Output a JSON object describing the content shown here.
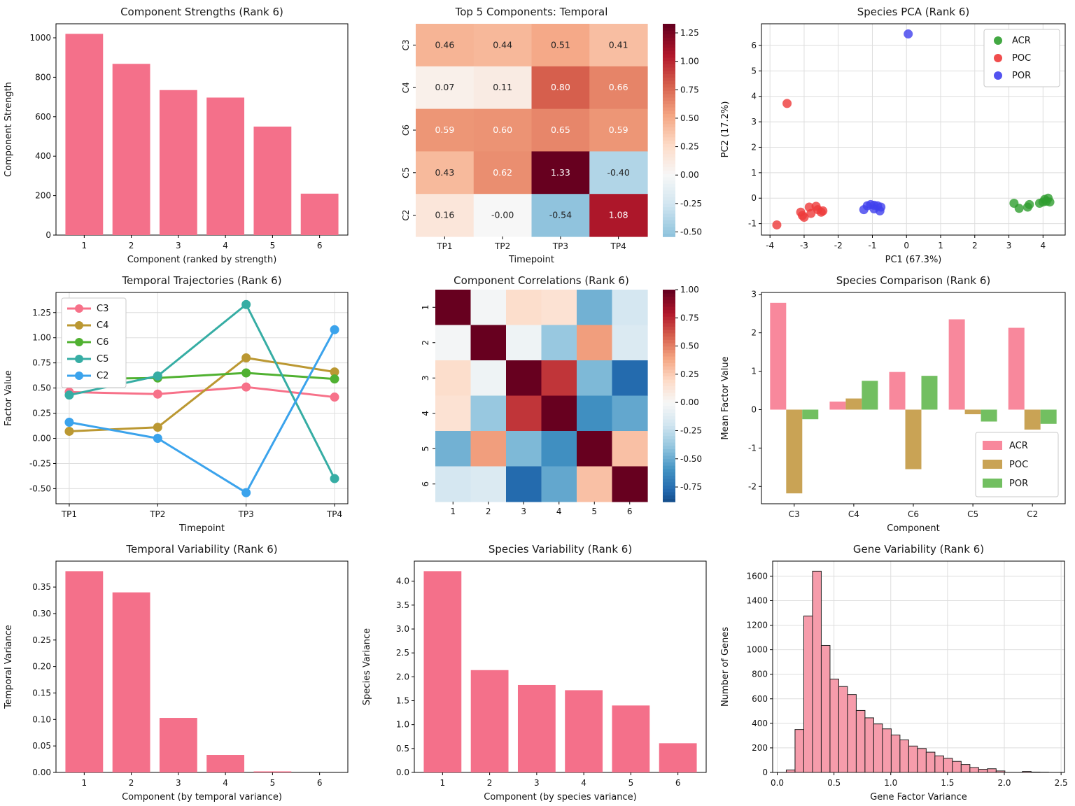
{
  "figure": {
    "background": "#ffffff",
    "text_color": "#141414",
    "grid_color": "#dedede"
  },
  "chart_data": [
    {
      "key": "component_strengths",
      "type": "bar",
      "title": "Component Strengths (Rank 6)",
      "xlabel": "Component (ranked by strength)",
      "ylabel": "Component Strength",
      "categories": [
        "1",
        "2",
        "3",
        "4",
        "5",
        "6"
      ],
      "values": [
        1020,
        868,
        735,
        697,
        550,
        210
      ],
      "bar_color": "#f4708a",
      "ylim": [
        0,
        1071
      ],
      "yticks": {
        "values": [
          0,
          200,
          400,
          600,
          800,
          1000
        ],
        "labels": [
          "0",
          "200",
          "400",
          "600",
          "800",
          "1000"
        ]
      }
    },
    {
      "key": "top5_temporal",
      "type": "heatmap",
      "title": "Top 5 Components: Temporal",
      "xlabel": "Timepoint",
      "ylabel": "",
      "rows": [
        "C3",
        "C4",
        "C6",
        "C5",
        "C2"
      ],
      "cols": [
        "TP1",
        "TP2",
        "TP3",
        "TP4"
      ],
      "values": [
        [
          0.46,
          0.44,
          0.51,
          0.41
        ],
        [
          0.07,
          0.11,
          0.8,
          0.66
        ],
        [
          0.59,
          0.6,
          0.65,
          0.59
        ],
        [
          0.43,
          0.62,
          1.33,
          -0.4
        ],
        [
          0.16,
          -0.0,
          -0.54,
          1.08
        ]
      ],
      "cell_labels": [
        [
          "0.46",
          "0.44",
          "0.51",
          "0.41"
        ],
        [
          "0.07",
          "0.11",
          "0.80",
          "0.66"
        ],
        [
          "0.59",
          "0.60",
          "0.65",
          "0.59"
        ],
        [
          "0.43",
          "0.62",
          "1.33",
          "-0.40"
        ],
        [
          "0.16",
          "-0.00",
          "-0.54",
          "1.08"
        ]
      ],
      "annot": true,
      "colormap": "RdBu_r",
      "center": 0,
      "halfrange": 1.33,
      "vmin": -0.54,
      "vmax": 1.33,
      "colorbar_ticks": {
        "values": [
          1.25,
          1.0,
          0.75,
          0.5,
          0.25,
          0.0,
          -0.25,
          -0.5
        ],
        "labels": [
          "1.25",
          "1.00",
          "0.75",
          "0.50",
          "0.25",
          "0.00",
          "-0.25",
          "-0.50"
        ]
      }
    },
    {
      "key": "species_pca",
      "type": "scatter",
      "title": "Species PCA (Rank 6)",
      "xlabel": "PC1 (67.3%)",
      "ylabel": "PC2 (17.2%)",
      "xlim": [
        -4.25,
        4.65
      ],
      "ylim": [
        -1.45,
        6.85
      ],
      "xticks": {
        "values": [
          -4,
          -3,
          -2,
          -1,
          0,
          1,
          2,
          3,
          4
        ],
        "labels": [
          "-4",
          "-3",
          "-2",
          "-1",
          "0",
          "1",
          "2",
          "3",
          "4"
        ]
      },
      "yticks": {
        "values": [
          -1,
          0,
          1,
          2,
          3,
          4,
          5,
          6
        ],
        "labels": [
          "-1",
          "0",
          "1",
          "2",
          "3",
          "4",
          "5",
          "6"
        ]
      },
      "grid": true,
      "legend_position": "upper-right",
      "series": [
        {
          "name": "ACR",
          "color": "#2f9e2f",
          "points": [
            [
              3.15,
              -0.2
            ],
            [
              3.3,
              -0.4
            ],
            [
              3.55,
              -0.35
            ],
            [
              3.6,
              -0.25
            ],
            [
              3.9,
              -0.2
            ],
            [
              4.0,
              -0.15
            ],
            [
              4.05,
              -0.05
            ],
            [
              4.1,
              -0.12
            ],
            [
              4.15,
              0.0
            ],
            [
              4.2,
              -0.15
            ]
          ]
        },
        {
          "name": "POC",
          "color": "#ee3a3a",
          "points": [
            [
              -3.5,
              3.72
            ],
            [
              -3.8,
              -1.05
            ],
            [
              -3.1,
              -0.55
            ],
            [
              -3.05,
              -0.68
            ],
            [
              -3.0,
              -0.75
            ],
            [
              -2.85,
              -0.35
            ],
            [
              -2.8,
              -0.6
            ],
            [
              -2.65,
              -0.32
            ],
            [
              -2.6,
              -0.45
            ],
            [
              -2.5,
              -0.55
            ],
            [
              -2.45,
              -0.5
            ]
          ]
        },
        {
          "name": "POR",
          "color": "#4040ee",
          "points": [
            [
              0.05,
              6.45
            ],
            [
              -1.25,
              -0.45
            ],
            [
              -1.15,
              -0.3
            ],
            [
              -1.05,
              -0.25
            ],
            [
              -0.95,
              -0.28
            ],
            [
              -0.95,
              -0.42
            ],
            [
              -0.85,
              -0.3
            ],
            [
              -0.78,
              -0.5
            ],
            [
              -0.75,
              -0.35
            ]
          ]
        }
      ]
    },
    {
      "key": "temporal_trajectories",
      "type": "line",
      "title": "Temporal Trajectories (Rank 6)",
      "xlabel": "Timepoint",
      "ylabel": "Factor Value",
      "categories": [
        "TP1",
        "TP2",
        "TP3",
        "TP4"
      ],
      "ylim": [
        -0.65,
        1.45
      ],
      "yticks": {
        "values": [
          -0.5,
          -0.25,
          0.0,
          0.25,
          0.5,
          0.75,
          1.0,
          1.25
        ],
        "labels": [
          "-0.50",
          "-0.25",
          "0.00",
          "0.25",
          "0.50",
          "0.75",
          "1.00",
          "1.25"
        ]
      },
      "grid": true,
      "legend_position": "upper-left",
      "series": [
        {
          "name": "C3",
          "color": "#f77189",
          "values": [
            0.46,
            0.44,
            0.51,
            0.41
          ]
        },
        {
          "name": "C4",
          "color": "#bb9832",
          "values": [
            0.07,
            0.11,
            0.8,
            0.66
          ]
        },
        {
          "name": "C6",
          "color": "#50b131",
          "values": [
            0.59,
            0.6,
            0.65,
            0.59
          ]
        },
        {
          "name": "C5",
          "color": "#36ada4",
          "values": [
            0.43,
            0.62,
            1.33,
            -0.4
          ]
        },
        {
          "name": "C2",
          "color": "#3ba3ec",
          "values": [
            0.16,
            0.0,
            -0.54,
            1.08
          ]
        }
      ]
    },
    {
      "key": "component_correlations",
      "type": "heatmap",
      "title": "Component Correlations (Rank 6)",
      "xlabel": "",
      "ylabel": "",
      "rows": [
        "1",
        "2",
        "3",
        "4",
        "5",
        "6"
      ],
      "cols": [
        "1",
        "2",
        "3",
        "4",
        "5",
        "6"
      ],
      "values": [
        [
          1.0,
          -0.02,
          0.18,
          0.15,
          -0.48,
          -0.18
        ],
        [
          -0.02,
          1.0,
          -0.05,
          -0.38,
          0.42,
          -0.15
        ],
        [
          0.18,
          -0.05,
          1.0,
          0.72,
          -0.45,
          -0.78
        ],
        [
          0.15,
          -0.38,
          0.72,
          1.0,
          -0.62,
          -0.52
        ],
        [
          -0.48,
          0.42,
          -0.45,
          -0.62,
          1.0,
          0.3
        ],
        [
          -0.18,
          -0.15,
          -0.78,
          -0.52,
          0.3,
          1.0
        ]
      ],
      "annot": false,
      "colormap": "RdBu_r",
      "center": 0,
      "halfrange": 1.0,
      "vmin": -0.88,
      "vmax": 1.0,
      "colorbar_ticks": {
        "values": [
          1.0,
          0.75,
          0.5,
          0.25,
          0.0,
          -0.25,
          -0.5,
          -0.75
        ],
        "labels": [
          "1.00",
          "0.75",
          "0.50",
          "0.25",
          "0.00",
          "-0.25",
          "-0.50",
          "-0.75"
        ]
      }
    },
    {
      "key": "species_comparison",
      "type": "grouped_bar",
      "title": "Species Comparison (Rank 6)",
      "xlabel": "Component",
      "ylabel": "Mean Factor Value",
      "categories": [
        "C3",
        "C4",
        "C6",
        "C5",
        "C2"
      ],
      "ylim": [
        -2.45,
        3.05
      ],
      "yticks": {
        "values": [
          -2,
          -1,
          0,
          1,
          2,
          3
        ],
        "labels": [
          "-2",
          "-1",
          "0",
          "1",
          "2",
          "3"
        ]
      },
      "legend_position": "lower-right",
      "series": [
        {
          "name": "ACR",
          "color": "#f8889c",
          "values": [
            2.78,
            0.21,
            0.98,
            2.35,
            2.13
          ]
        },
        {
          "name": "POC",
          "color": "#c9a355",
          "values": [
            -2.18,
            0.29,
            -1.55,
            -0.12,
            -0.52
          ]
        },
        {
          "name": "POR",
          "color": "#72bf61",
          "values": [
            -0.25,
            0.75,
            0.88,
            -0.31,
            -0.37
          ]
        }
      ]
    },
    {
      "key": "temporal_variability",
      "type": "bar",
      "title": "Temporal Variability (Rank 6)",
      "xlabel": "Component (by temporal variance)",
      "ylabel": "Temporal Variance",
      "categories": [
        "1",
        "2",
        "3",
        "4",
        "5",
        "6"
      ],
      "values": [
        0.38,
        0.34,
        0.103,
        0.033,
        0.002,
        0.0
      ],
      "bar_color": "#f4708a",
      "ylim": [
        0,
        0.399
      ],
      "yticks": {
        "values": [
          0.0,
          0.05,
          0.1,
          0.15,
          0.2,
          0.25,
          0.3,
          0.35
        ],
        "labels": [
          "0.00",
          "0.05",
          "0.10",
          "0.15",
          "0.20",
          "0.25",
          "0.30",
          "0.35"
        ]
      }
    },
    {
      "key": "species_variability",
      "type": "bar",
      "title": "Species Variability (Rank 6)",
      "xlabel": "Component (by species variance)",
      "ylabel": "Species Variance",
      "categories": [
        "1",
        "2",
        "3",
        "4",
        "5",
        "6"
      ],
      "values": [
        4.21,
        2.14,
        1.83,
        1.72,
        1.4,
        0.61
      ],
      "bar_color": "#f4708a",
      "ylim": [
        0,
        4.42
      ],
      "yticks": {
        "values": [
          0.0,
          0.5,
          1.0,
          1.5,
          2.0,
          2.5,
          3.0,
          3.5,
          4.0
        ],
        "labels": [
          "0.0",
          "0.5",
          "1.0",
          "1.5",
          "2.0",
          "2.5",
          "3.0",
          "3.5",
          "4.0"
        ]
      }
    },
    {
      "key": "gene_variability",
      "type": "histogram",
      "title": "Gene Variability (Rank 6)",
      "xlabel": "Gene Factor Variance",
      "ylabel": "Number of Genes",
      "bin_start": 0.08,
      "bin_width": 0.077,
      "counts": [
        20,
        350,
        1275,
        1640,
        1035,
        760,
        700,
        635,
        505,
        445,
        395,
        355,
        305,
        265,
        215,
        195,
        165,
        135,
        115,
        90,
        65,
        40,
        25,
        30,
        12,
        0,
        0,
        8,
        3,
        2
      ],
      "bar_color": "#f69cab",
      "edge_color": "#1f1f1f",
      "xlim": [
        -0.04,
        2.53
      ],
      "ylim": [
        0,
        1722
      ],
      "grid": true,
      "xticks": {
        "values": [
          0.0,
          0.5,
          1.0,
          1.5,
          2.0,
          2.5
        ],
        "labels": [
          "0.0",
          "0.5",
          "1.0",
          "1.5",
          "2.0",
          "2.5"
        ]
      },
      "yticks": {
        "values": [
          0,
          200,
          400,
          600,
          800,
          1000,
          1200,
          1400,
          1600
        ],
        "labels": [
          "0",
          "200",
          "400",
          "600",
          "800",
          "1000",
          "1200",
          "1400",
          "1600"
        ]
      }
    }
  ]
}
